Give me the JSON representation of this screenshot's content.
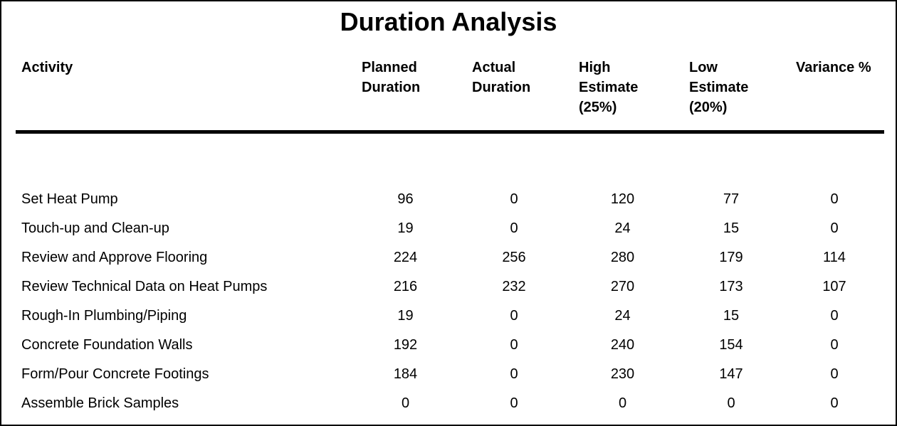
{
  "title": "Duration Analysis",
  "table": {
    "columns": [
      "Activity",
      "Planned\nDuration",
      "Actual\nDuration",
      "High\nEstimate\n(25%)",
      "Low\nEstimate\n(20%)",
      "Variance %"
    ],
    "rows": [
      {
        "activity": "Set Heat Pump",
        "values": [
          "96",
          "0",
          "120",
          "77",
          "0"
        ]
      },
      {
        "activity": "Touch-up and Clean-up",
        "values": [
          "19",
          "0",
          "24",
          "15",
          "0"
        ]
      },
      {
        "activity": "Review and Approve Flooring",
        "values": [
          "224",
          "256",
          "280",
          "179",
          "114"
        ]
      },
      {
        "activity": "Review Technical Data on Heat Pumps",
        "values": [
          "216",
          "232",
          "270",
          "173",
          "107"
        ]
      },
      {
        "activity": "Rough-In Plumbing/Piping",
        "values": [
          "19",
          "0",
          "24",
          "15",
          "0"
        ]
      },
      {
        "activity": "Concrete Foundation Walls",
        "values": [
          "192",
          "0",
          "240",
          "154",
          "0"
        ]
      },
      {
        "activity": "Form/Pour Concrete Footings",
        "values": [
          "184",
          "0",
          "230",
          "147",
          "0"
        ]
      },
      {
        "activity": "Assemble Brick Samples",
        "values": [
          "0",
          "0",
          "0",
          "0",
          "0"
        ]
      }
    ]
  }
}
